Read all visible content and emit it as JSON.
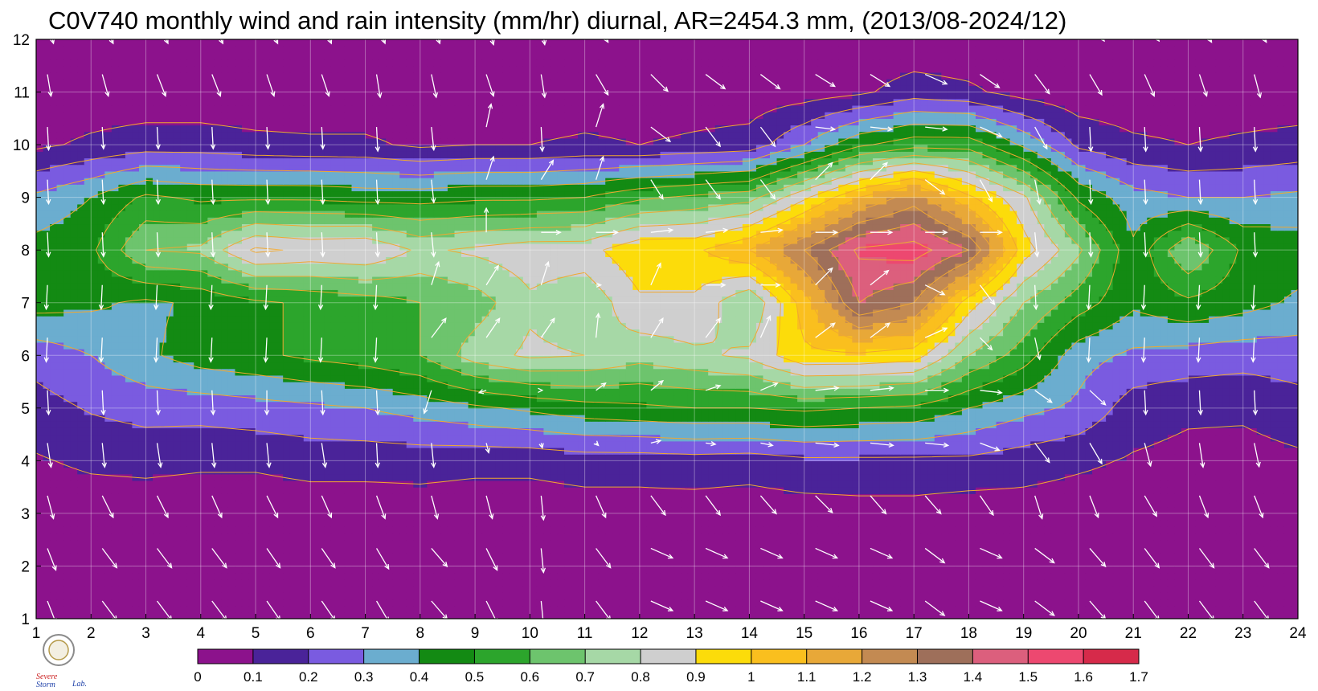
{
  "figure": {
    "title": "C0V740 monthly wind and rain intensity (mm/hr) diurnal, AR=2454.3 mm, (2013/08-2024/12)"
  },
  "logo": {
    "text_1": "Severe",
    "text_2": "Storm",
    "text_3": "Lab."
  },
  "chart_data": {
    "type": "heatmap",
    "title": "C0V740 monthly wind and rain intensity (mm/hr) diurnal, AR=2454.3 mm, (2013/08-2024/12)",
    "xlabel": "",
    "ylabel": "",
    "xlim": [
      1,
      24
    ],
    "ylim": [
      1,
      12
    ],
    "x_ticks": [
      1,
      2,
      3,
      4,
      5,
      6,
      7,
      8,
      9,
      10,
      11,
      12,
      13,
      14,
      15,
      16,
      17,
      18,
      19,
      20,
      21,
      22,
      23,
      24
    ],
    "y_ticks": [
      1,
      2,
      3,
      4,
      5,
      6,
      7,
      8,
      9,
      10,
      11,
      12
    ],
    "grid": true,
    "colorbar": {
      "ticks": [
        "0",
        "0.1",
        "0.2",
        "0.3",
        "0.4",
        "0.5",
        "0.6",
        "0.7",
        "0.8",
        "0.9",
        "1",
        "1.1",
        "1.2",
        "1.3",
        "1.4",
        "1.5",
        "1.6",
        "1.7"
      ],
      "levels": [
        0,
        0.1,
        0.2,
        0.3,
        0.4,
        0.5,
        0.6,
        0.7,
        0.8,
        0.9,
        1.0,
        1.1,
        1.2,
        1.3,
        1.4,
        1.5,
        1.6,
        1.7
      ],
      "colors": [
        "#8c128c",
        "#4a2399",
        "#7a5be0",
        "#6badcf",
        "#138a13",
        "#2ca52c",
        "#6dc46d",
        "#a6d8a6",
        "#cfcfcf",
        "#fcdc0a",
        "#fabf1e",
        "#e8a838",
        "#c38a52",
        "#9e6f5a",
        "#dc5f7d",
        "#ed4870",
        "#d62a4a"
      ],
      "contour_line_color": "#f0a830"
    },
    "rain_intensity": [
      [
        0.02,
        0.02,
        0.02,
        0.02,
        0.02,
        0.02,
        0.02,
        0.02,
        0.02,
        0.02,
        0.02,
        0.02,
        0.02,
        0.02,
        0.02,
        0.02,
        0.02,
        0.02,
        0.02,
        0.02,
        0.02,
        0.02,
        0.02,
        0.02
      ],
      [
        0.02,
        0.02,
        0.02,
        0.02,
        0.02,
        0.02,
        0.02,
        0.02,
        0.02,
        0.02,
        0.02,
        0.02,
        0.02,
        0.02,
        0.02,
        0.02,
        0.02,
        0.02,
        0.02,
        0.02,
        0.02,
        0.02,
        0.02,
        0.02
      ],
      [
        0.03,
        0.04,
        0.04,
        0.03,
        0.03,
        0.04,
        0.04,
        0.05,
        0.04,
        0.04,
        0.05,
        0.05,
        0.05,
        0.04,
        0.05,
        0.06,
        0.06,
        0.04,
        0.05,
        0.04,
        0.04,
        0.04,
        0.04,
        0.04
      ],
      [
        0.09,
        0.12,
        0.13,
        0.12,
        0.12,
        0.14,
        0.14,
        0.14,
        0.13,
        0.13,
        0.15,
        0.15,
        0.16,
        0.15,
        0.18,
        0.18,
        0.18,
        0.18,
        0.15,
        0.12,
        0.09,
        0.07,
        0.06,
        0.08
      ],
      [
        0.16,
        0.21,
        0.24,
        0.24,
        0.26,
        0.28,
        0.3,
        0.34,
        0.38,
        0.42,
        0.46,
        0.48,
        0.5,
        0.5,
        0.52,
        0.5,
        0.48,
        0.4,
        0.33,
        0.28,
        0.15,
        0.12,
        0.12,
        0.16
      ],
      [
        0.24,
        0.3,
        0.38,
        0.45,
        0.48,
        0.52,
        0.55,
        0.6,
        0.75,
        0.82,
        0.8,
        0.74,
        0.78,
        0.82,
        0.98,
        0.98,
        0.95,
        0.7,
        0.55,
        0.34,
        0.28,
        0.26,
        0.24,
        0.25
      ],
      [
        0.44,
        0.42,
        0.38,
        0.42,
        0.48,
        0.52,
        0.55,
        0.6,
        0.65,
        0.78,
        0.72,
        0.88,
        0.88,
        0.7,
        1.05,
        1.4,
        1.3,
        0.95,
        0.7,
        0.55,
        0.42,
        0.48,
        0.44,
        0.38
      ],
      [
        0.44,
        0.48,
        0.7,
        0.72,
        0.92,
        0.88,
        0.9,
        0.78,
        0.82,
        0.86,
        0.86,
        0.98,
        0.98,
        1.1,
        1.3,
        1.52,
        1.55,
        1.4,
        0.95,
        0.72,
        0.42,
        0.7,
        0.48,
        0.46
      ],
      [
        0.32,
        0.4,
        0.52,
        0.48,
        0.48,
        0.48,
        0.46,
        0.46,
        0.48,
        0.48,
        0.5,
        0.58,
        0.62,
        0.66,
        0.88,
        1.1,
        1.25,
        1.02,
        0.82,
        0.48,
        0.34,
        0.3,
        0.3,
        0.32
      ],
      [
        0.08,
        0.12,
        0.15,
        0.15,
        0.13,
        0.12,
        0.12,
        0.08,
        0.1,
        0.1,
        0.12,
        0.1,
        0.12,
        0.14,
        0.3,
        0.48,
        0.56,
        0.56,
        0.38,
        0.18,
        0.12,
        0.1,
        0.12,
        0.14
      ],
      [
        0.02,
        0.03,
        0.03,
        0.03,
        0.02,
        0.02,
        0.02,
        0.02,
        0.02,
        0.02,
        0.03,
        0.03,
        0.04,
        0.04,
        0.05,
        0.08,
        0.15,
        0.12,
        0.06,
        0.03,
        0.03,
        0.03,
        0.03,
        0.03
      ],
      [
        0.02,
        0.02,
        0.02,
        0.02,
        0.02,
        0.02,
        0.02,
        0.02,
        0.02,
        0.02,
        0.02,
        0.02,
        0.02,
        0.02,
        0.02,
        0.02,
        0.02,
        0.02,
        0.02,
        0.02,
        0.02,
        0.02,
        0.02,
        0.02
      ]
    ],
    "wind_u": [
      [
        0.35,
        0.6,
        0.6,
        0.6,
        0.55,
        0.55,
        0.5,
        0.65,
        0.45,
        0.1,
        0.6,
        0.9,
        0.9,
        0.9,
        0.9,
        0.9,
        0.8,
        0.9,
        0.8,
        0.65,
        0.6,
        0.6,
        0.6,
        0.4
      ],
      [
        0.35,
        0.6,
        0.6,
        0.6,
        0.55,
        0.55,
        0.5,
        0.65,
        0.45,
        0.1,
        0.6,
        0.9,
        0.9,
        0.9,
        0.9,
        0.9,
        0.8,
        0.9,
        0.8,
        0.65,
        0.6,
        0.6,
        0.6,
        0.4
      ],
      [
        0.25,
        0.45,
        0.45,
        0.4,
        0.45,
        0.4,
        0.35,
        0.25,
        0.25,
        0.1,
        0.4,
        0.6,
        0.6,
        0.65,
        0.7,
        0.65,
        0.65,
        0.55,
        0.3,
        0.35,
        0.5,
        0.35,
        0.35,
        0.3
      ],
      [
        0.15,
        0.1,
        0.15,
        0.1,
        0.1,
        0.15,
        0.05,
        0.1,
        0.1,
        0.05,
        0.1,
        0.4,
        0.4,
        0.5,
        0.95,
        0.95,
        0.95,
        0.8,
        0.6,
        0.5,
        0.25,
        0.15,
        0.2,
        0.15
      ],
      [
        0.05,
        0.05,
        0.05,
        0.05,
        0.0,
        0.05,
        0.05,
        -0.3,
        -0.3,
        0.05,
        0.4,
        0.5,
        0.6,
        0.7,
        0.95,
        0.95,
        0.95,
        0.9,
        0.7,
        0.65,
        0.05,
        0.05,
        0.05,
        0.1
      ],
      [
        -0.05,
        -0.05,
        -0.05,
        -0.05,
        -0.05,
        -0.05,
        -0.05,
        0.6,
        0.55,
        0.55,
        0.1,
        0.5,
        0.6,
        0.4,
        0.8,
        0.8,
        0.9,
        0.5,
        0.2,
        -0.05,
        -0.05,
        -0.05,
        -0.05,
        0.05
      ],
      [
        -0.05,
        -0.05,
        -0.05,
        -0.05,
        -0.05,
        -0.05,
        -0.05,
        0.3,
        0.5,
        0.3,
        0.2,
        0.4,
        0.8,
        0.8,
        0.7,
        0.75,
        0.8,
        0.6,
        0.05,
        -0.05,
        -0.05,
        -0.05,
        -0.05,
        -0.05
      ],
      [
        0.05,
        0.05,
        0.05,
        0.05,
        0.05,
        0.05,
        0.05,
        0.1,
        0.0,
        0.8,
        0.9,
        0.9,
        0.9,
        0.9,
        0.9,
        0.9,
        0.9,
        0.9,
        0.1,
        0.05,
        0.05,
        0.05,
        0.05,
        0.05
      ],
      [
        0.05,
        0.05,
        0.05,
        0.05,
        0.05,
        0.05,
        0.05,
        0.1,
        0.3,
        0.5,
        0.3,
        0.5,
        0.6,
        0.6,
        0.7,
        0.7,
        0.8,
        0.5,
        0.2,
        0.05,
        0.05,
        0.05,
        0.05,
        0.05
      ],
      [
        0.05,
        0.05,
        0.05,
        0.05,
        0.05,
        0.05,
        0.05,
        0.1,
        0.2,
        0.05,
        0.3,
        0.8,
        0.6,
        0.6,
        0.8,
        0.9,
        0.9,
        0.9,
        0.5,
        0.05,
        0.05,
        0.05,
        0.05,
        0.05
      ],
      [
        0.15,
        0.25,
        0.35,
        0.35,
        0.3,
        0.3,
        0.15,
        0.2,
        0.3,
        0.15,
        0.5,
        0.7,
        0.8,
        0.8,
        0.8,
        0.8,
        0.9,
        0.8,
        0.6,
        0.5,
        0.4,
        0.3,
        0.25,
        0.2
      ],
      [
        0.25,
        0.45,
        0.45,
        0.45,
        0.45,
        0.4,
        0.35,
        0.35,
        0.3,
        0.15,
        0.5,
        0.7,
        0.8,
        0.8,
        0.8,
        0.8,
        0.8,
        0.8,
        0.7,
        0.6,
        0.6,
        0.5,
        0.5,
        0.4
      ]
    ],
    "wind_v": [
      [
        -0.9,
        -0.8,
        -0.8,
        -0.8,
        -0.8,
        -0.8,
        -0.85,
        -0.75,
        -0.9,
        -1.0,
        -0.8,
        -0.4,
        -0.4,
        -0.4,
        -0.4,
        -0.4,
        -0.6,
        -0.4,
        -0.6,
        -0.75,
        -0.8,
        -0.8,
        -0.8,
        -0.9
      ],
      [
        -0.9,
        -0.8,
        -0.8,
        -0.8,
        -0.8,
        -0.8,
        -0.85,
        -0.75,
        -0.9,
        -1.0,
        -0.8,
        -0.4,
        -0.4,
        -0.4,
        -0.4,
        -0.4,
        -0.6,
        -0.4,
        -0.6,
        -0.75,
        -0.8,
        -0.8,
        -0.8,
        -0.9
      ],
      [
        -0.95,
        -0.9,
        -0.9,
        -0.9,
        -0.9,
        -0.9,
        -0.95,
        -0.95,
        -0.95,
        -1.0,
        -0.9,
        -0.8,
        -0.8,
        -0.75,
        -0.7,
        -0.75,
        -0.75,
        -0.8,
        -0.95,
        -0.9,
        -0.85,
        -0.9,
        -0.9,
        -0.95
      ],
      [
        -1.0,
        -1.0,
        -1.0,
        -1.0,
        -1.0,
        -1.0,
        -1.0,
        -1.0,
        -0.4,
        -0.2,
        -0.1,
        0.1,
        -0.05,
        -0.1,
        -0.1,
        -0.1,
        -0.1,
        -0.3,
        -0.8,
        -0.85,
        -0.95,
        -1.0,
        -0.98,
        -0.98
      ],
      [
        -1.0,
        -1.0,
        -1.0,
        -1.0,
        -1.0,
        -1.0,
        -1.0,
        -0.95,
        -0.1,
        0.0,
        0.3,
        0.4,
        0.2,
        0.3,
        0.1,
        0.1,
        0.0,
        -0.1,
        -0.5,
        -0.6,
        -1.0,
        -1.0,
        -1.0,
        -1.0
      ],
      [
        -1.0,
        -1.0,
        -1.0,
        -1.0,
        -1.0,
        -1.0,
        -1.0,
        0.8,
        0.8,
        0.8,
        1.0,
        0.8,
        0.8,
        0.9,
        0.6,
        0.6,
        0.4,
        -0.5,
        -0.9,
        -1.0,
        -1.0,
        -1.0,
        -1.0,
        -1.0
      ],
      [
        -1.0,
        -1.0,
        -1.0,
        -1.0,
        -1.0,
        -1.0,
        -1.0,
        0.95,
        0.8,
        0.95,
        0.0,
        0.9,
        0.0,
        0.0,
        0.7,
        0.6,
        -0.4,
        -0.8,
        -1.0,
        -1.0,
        -1.0,
        -1.0,
        -1.0,
        -1.0
      ],
      [
        -1.0,
        -1.0,
        -1.0,
        -1.0,
        -1.0,
        -1.0,
        -1.0,
        -1.0,
        1.0,
        0.0,
        0.0,
        0.1,
        0.1,
        0.1,
        0.0,
        0.0,
        0.0,
        0.0,
        -1.0,
        -1.0,
        -1.0,
        -1.0,
        -1.0,
        -1.0
      ],
      [
        -1.0,
        -1.0,
        -1.0,
        -1.0,
        -1.0,
        -1.0,
        -1.0,
        -0.95,
        0.95,
        0.8,
        0.95,
        -0.8,
        -0.8,
        -0.8,
        0.7,
        0.7,
        -0.6,
        -0.9,
        -1.0,
        -1.0,
        -1.0,
        -1.0,
        -1.0,
        -1.0
      ],
      [
        -0.95,
        -0.9,
        -0.9,
        -0.9,
        -0.9,
        -0.9,
        -1.0,
        -0.95,
        0.95,
        -1.0,
        0.95,
        -0.6,
        -0.8,
        -0.8,
        -0.1,
        -0.1,
        -0.1,
        -0.4,
        -0.9,
        -1.0,
        -1.0,
        -1.0,
        -1.0,
        -1.0
      ],
      [
        -0.9,
        -0.9,
        -0.9,
        -0.9,
        -0.9,
        -0.9,
        -0.95,
        -0.95,
        -0.9,
        -0.95,
        -0.85,
        -0.7,
        -0.6,
        -0.6,
        -0.5,
        -0.5,
        -0.4,
        -0.55,
        -0.8,
        -0.85,
        -0.9,
        -0.9,
        -0.95,
        -0.95
      ],
      [
        -0.9,
        -0.9,
        -0.9,
        -0.9,
        -0.9,
        -0.9,
        -0.9,
        -0.9,
        -0.95,
        -0.95,
        -0.85,
        -0.7,
        -0.6,
        -0.6,
        -0.6,
        -0.6,
        -0.6,
        -0.6,
        -0.7,
        -0.8,
        -0.8,
        -0.85,
        -0.85,
        -0.9
      ]
    ]
  }
}
